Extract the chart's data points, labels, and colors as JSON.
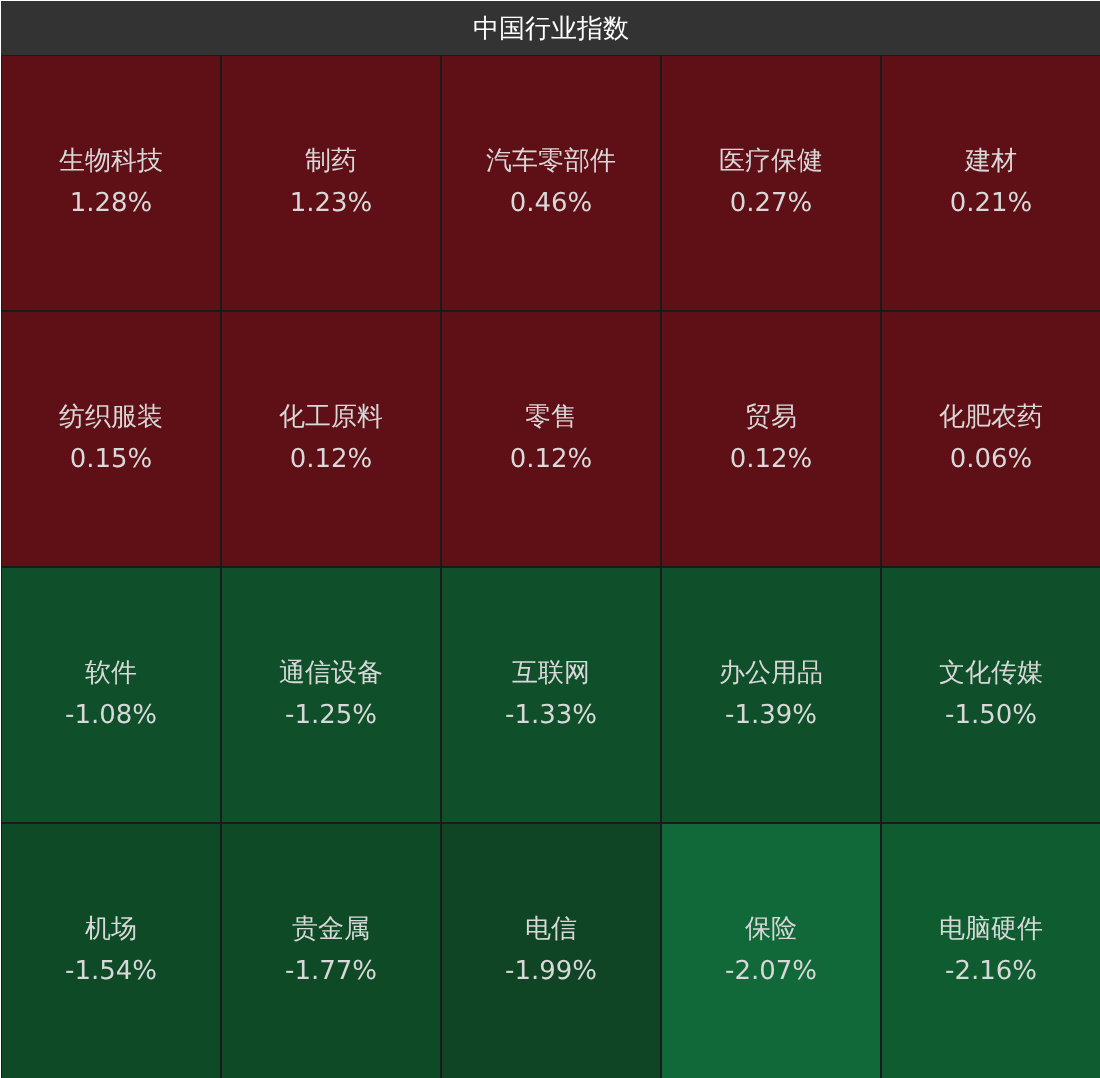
{
  "chart_data": {
    "type": "heatmap",
    "title": "中国行业指数",
    "categories": [
      null,
      null,
      null,
      null,
      null
    ],
    "y_categories": [
      null,
      null,
      null,
      null
    ],
    "cells": [
      [
        1.28,
        1.23,
        0.46,
        0.27,
        0.21
      ],
      [
        0.15,
        0.12,
        0.12,
        0.12,
        0.06
      ],
      [
        -1.08,
        -1.25,
        -1.33,
        -1.39,
        -1.5
      ],
      [
        -1.54,
        -1.77,
        -1.99,
        -2.07,
        -2.16
      ]
    ],
    "cell_labels": [
      [
        "1.28%",
        "1.23%",
        "0.46%",
        "0.27%",
        "0.21%"
      ],
      [
        "0.15%",
        "0.12%",
        "0.12%",
        "0.12%",
        "0.06%"
      ],
      [
        "-1.08%",
        "-1.25%",
        "-1.33%",
        "-1.39%",
        "-1.50%"
      ],
      [
        "-1.54%",
        "-1.77%",
        "-1.99%",
        "-2.07%",
        "-2.16%"
      ]
    ],
    "annotations": [
      "生物科技",
      "制药",
      "汽车零部件",
      "医疗保健",
      "建材",
      "纺织服装",
      "化工原料",
      "零售",
      "贸易",
      "化肥农药",
      "软件",
      "通信设备",
      "互联网",
      "办公用品",
      "文化传媒",
      "机场",
      "贵金属",
      "电信",
      "保险",
      "电脑硬件"
    ],
    "colors": [
      [
        "#5e1016",
        "#5e1016",
        "#5e1016",
        "#5e1016",
        "#5e1016"
      ],
      [
        "#5e1016",
        "#5e1016",
        "#5e1016",
        "#5e1016",
        "#5e1016"
      ],
      [
        "#0f4f2a",
        "#0f4f2a",
        "#0f4f2a",
        "#0f4f2a",
        "#0f4f2a"
      ],
      [
        "#0f4a26",
        "#0f4a26",
        "#0f4424",
        "#11693a",
        "#0e5c30"
      ]
    ]
  }
}
